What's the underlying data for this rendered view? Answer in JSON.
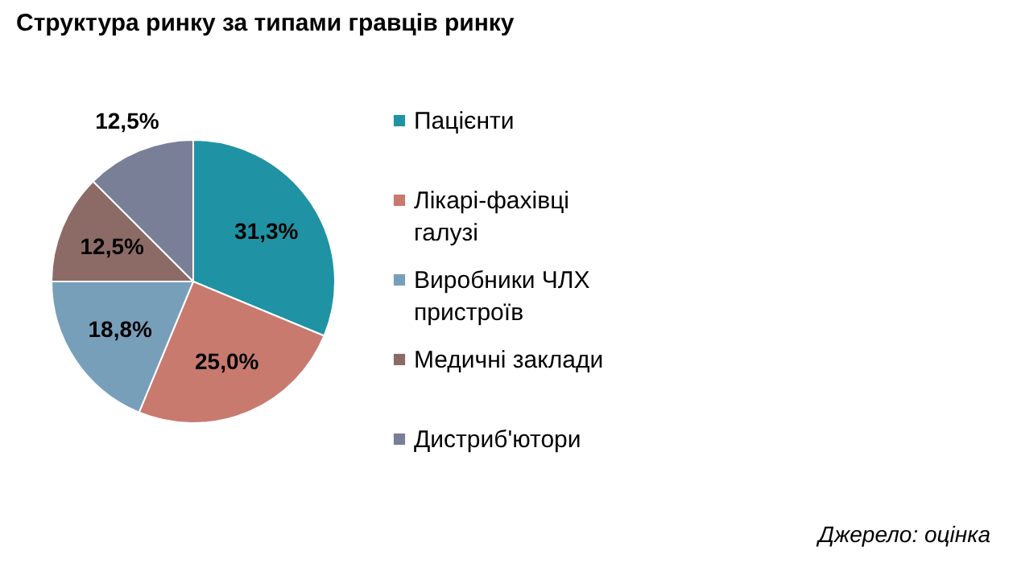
{
  "chart_data": {
    "type": "pie",
    "title": "Структура ринку за типами гравців ринку",
    "categories": [
      "Пацієнти",
      "Лікарі-фахівці\nгалузі",
      "Виробники ЧЛХ\nпристроїв",
      "Медичні заклади",
      "Дистриб'ютори"
    ],
    "values": [
      31.3,
      25.0,
      18.8,
      12.5,
      12.5
    ],
    "colors": [
      "#1f93a3",
      "#c87a6f",
      "#789fba",
      "#8c6b67",
      "#7a7f98"
    ],
    "value_labels": [
      "31,3%",
      "25,0%",
      "18,8%",
      "12,5%",
      "12,5%"
    ],
    "legend": "right",
    "annotations": [
      "Джерело: оцінка"
    ]
  }
}
